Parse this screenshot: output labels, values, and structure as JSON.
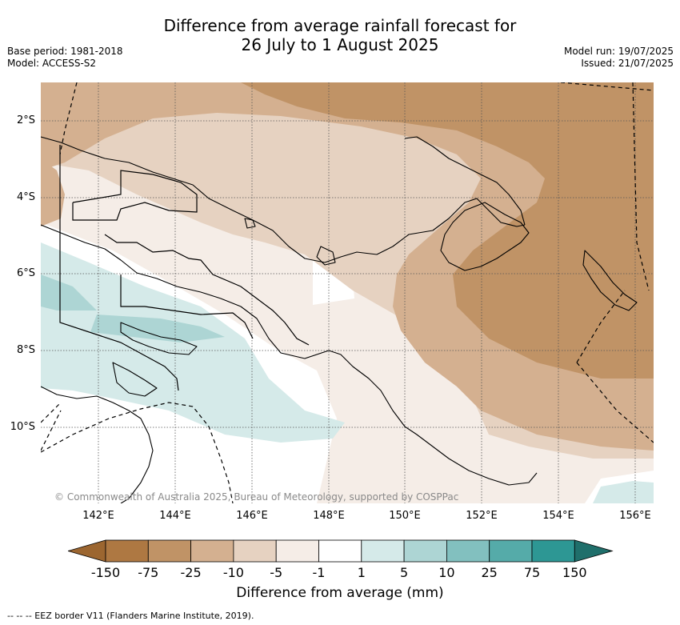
{
  "title_line1": "Difference from average rainfall forecast for",
  "title_line2": "26 July to 1 August 2025",
  "base_period": "Base period: 1981-2018",
  "model": "Model: ACCESS-S2",
  "model_run": "Model run: 19/07/2025",
  "issued": "Issued: 21/07/2025",
  "lat_labels": [
    "2°S",
    "4°S",
    "6°S",
    "8°S",
    "10°S"
  ],
  "lon_labels": [
    "142°E",
    "144°E",
    "146°E",
    "148°E",
    "150°E",
    "152°E",
    "154°E",
    "156°E"
  ],
  "copyright": "© Commonwealth of Australia 2025, Bureau of Meteorology, supported by COSPPac",
  "colorbar": {
    "ticks": [
      "-150",
      "-75",
      "-25",
      "-10",
      "-5",
      "-1",
      "1",
      "5",
      "10",
      "25",
      "75",
      "150"
    ],
    "colors": [
      "#9c6630",
      "#ae7842",
      "#c09366",
      "#d4b090",
      "#e6d2c1",
      "#f5ede7",
      "#ffffff",
      "#d5eae9",
      "#add5d4",
      "#82c0bf",
      "#55aba9",
      "#2d9794",
      "#1f6f6b"
    ],
    "title": "Difference from average (mm)"
  },
  "footnote": "--  --  -- EEZ border V11 (Flanders Marine Institute, 2019)."
}
